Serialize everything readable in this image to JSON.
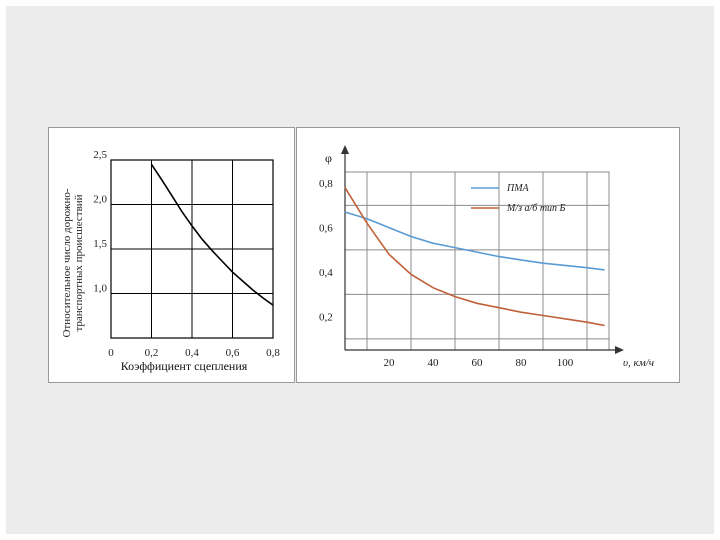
{
  "chart_data": [
    {
      "type": "line",
      "title": "",
      "xlabel": "Коэффициент сцепления",
      "ylabel": "Относительное число дорожно-транспортных происшествий",
      "ylabel_lines": [
        "Относительное число дорожно-",
        "транспортных происшествий"
      ],
      "xlim": [
        0,
        0.8
      ],
      "ylim": [
        0.5,
        2.5
      ],
      "x_ticks": [
        0,
        0.2,
        0.4,
        0.6,
        0.8
      ],
      "x_tick_labels": [
        "0",
        "0,2",
        "0,4",
        "0,6",
        "0,8"
      ],
      "y_ticks": [
        1.0,
        1.5,
        2.0,
        2.5
      ],
      "y_tick_labels": [
        "1,0",
        "1,5",
        "2,0",
        "2,5"
      ],
      "grid": true,
      "series": [
        {
          "color": "#000000",
          "x": [
            0.2,
            0.25,
            0.3,
            0.35,
            0.4,
            0.45,
            0.5,
            0.55,
            0.6,
            0.65,
            0.7,
            0.75,
            0.8
          ],
          "y": [
            2.45,
            2.28,
            2.1,
            1.92,
            1.76,
            1.61,
            1.48,
            1.36,
            1.24,
            1.14,
            1.04,
            0.95,
            0.87
          ]
        }
      ]
    },
    {
      "type": "line",
      "title": "",
      "xlabel": "υ, км/ч",
      "ylabel": "φ",
      "xlim": [
        0,
        120
      ],
      "ylim": [
        0.05,
        0.85
      ],
      "x_ticks": [
        10,
        30,
        50,
        70,
        90,
        110
      ],
      "x_tick_labels": [
        "20",
        "40",
        "60",
        "80",
        "100"
      ],
      "x_tick_label_positions": [
        20,
        40,
        60,
        80,
        100
      ],
      "y_tick_labels": [
        "0,8",
        "0,6",
        "0,4",
        "0,2"
      ],
      "y_tick_label_values": [
        0.8,
        0.6,
        0.4,
        0.2
      ],
      "y_ticks": [
        0.1,
        0.3,
        0.5,
        0.7
      ],
      "grid": true,
      "legend_position": "top-right",
      "series": [
        {
          "name": "ПМА",
          "color": "#5b9bd5",
          "x": [
            0,
            10,
            20,
            30,
            40,
            50,
            60,
            70,
            80,
            90,
            100,
            110,
            118
          ],
          "y": [
            0.67,
            0.64,
            0.6,
            0.56,
            0.53,
            0.51,
            0.49,
            0.47,
            0.455,
            0.44,
            0.43,
            0.42,
            0.41
          ]
        },
        {
          "name": "М/з а/б тип Б",
          "color": "#c0603a",
          "x": [
            0,
            5,
            10,
            15,
            20,
            30,
            40,
            50,
            60,
            70,
            80,
            90,
            100,
            110,
            118
          ],
          "y": [
            0.78,
            0.7,
            0.62,
            0.55,
            0.48,
            0.39,
            0.33,
            0.29,
            0.26,
            0.24,
            0.22,
            0.205,
            0.19,
            0.175,
            0.16
          ]
        }
      ]
    }
  ]
}
